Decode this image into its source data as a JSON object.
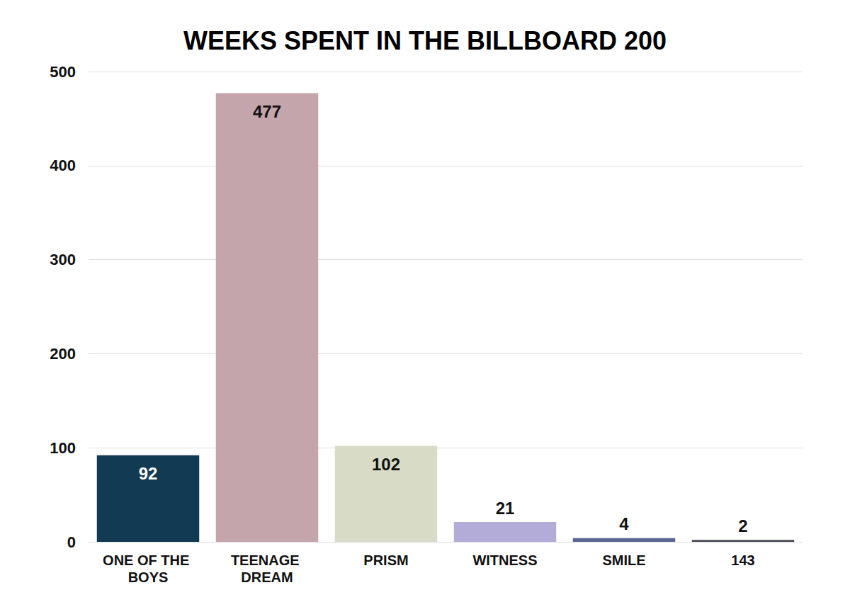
{
  "chart_data": {
    "type": "bar",
    "title": "WEEKS SPENT IN THE BILLBOARD 200",
    "categories": [
      "ONE OF THE BOYS",
      "TEENAGE DREAM",
      "PRISM",
      "WITNESS",
      "SMILE",
      "143"
    ],
    "values": [
      92,
      477,
      102,
      21,
      4,
      2
    ],
    "colors": [
      "#123a52",
      "#c4a5ab",
      "#d8dbc6",
      "#b4acd8",
      "#5b6694",
      "#4a4d57"
    ],
    "ylim": [
      0,
      500
    ],
    "yticks": [
      0,
      100,
      200,
      300,
      400,
      500
    ],
    "grid": true,
    "data_labels": true
  }
}
